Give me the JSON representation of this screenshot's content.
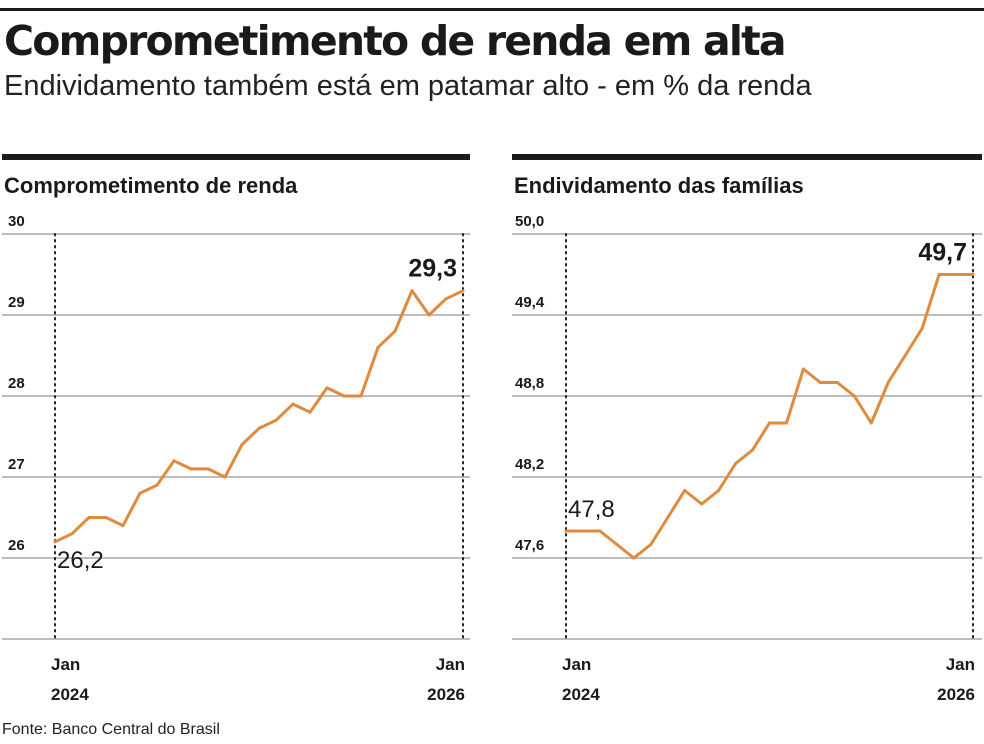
{
  "header": {
    "title": "Comprometimento de renda em alta",
    "subtitle": "Endividamento também está em patamar alto - em % da renda"
  },
  "colors": {
    "line": "#e08a3c",
    "grid": "#bbbbbb",
    "text": "#1a1a1a"
  },
  "chart_data": [
    {
      "type": "line",
      "title": "Comprometimento de renda",
      "ylim": [
        25,
        30
      ],
      "yticks": [
        26,
        27,
        28,
        29,
        30
      ],
      "ytick_labels": [
        "26",
        "27",
        "28",
        "29",
        "30"
      ],
      "x_start_label": [
        "Jan",
        "2024"
      ],
      "x_end_label": [
        "Jan",
        "2026"
      ],
      "annotation_start": "26,2",
      "annotation_end": "29,3",
      "grid": true,
      "values": [
        26.2,
        26.3,
        26.5,
        26.5,
        26.4,
        26.8,
        26.9,
        27.2,
        27.1,
        27.1,
        27.0,
        27.4,
        27.6,
        27.7,
        27.9,
        27.8,
        28.1,
        28.0,
        28.0,
        28.6,
        28.8,
        29.3,
        29.0,
        29.2,
        29.3
      ]
    },
    {
      "type": "line",
      "title": "Endividamento das famílias",
      "ylim": [
        47.0,
        50.0
      ],
      "yticks": [
        47.6,
        48.2,
        48.8,
        49.4,
        50.0
      ],
      "ytick_labels": [
        "47,6",
        "48,2",
        "48,8",
        "49,4",
        "50,0"
      ],
      "x_start_label": [
        "Jan",
        "2024"
      ],
      "x_end_label": [
        "Jan",
        "2026"
      ],
      "annotation_start": "47,8",
      "annotation_end": "49,7",
      "grid": true,
      "values": [
        47.8,
        47.8,
        47.8,
        47.7,
        47.6,
        47.7,
        47.9,
        48.1,
        48.0,
        48.1,
        48.3,
        48.4,
        48.6,
        48.6,
        49.0,
        48.9,
        48.9,
        48.8,
        48.6,
        48.9,
        49.1,
        49.3,
        49.7,
        49.7,
        49.7
      ]
    }
  ],
  "source": "Fonte: Banco Central do Brasil"
}
